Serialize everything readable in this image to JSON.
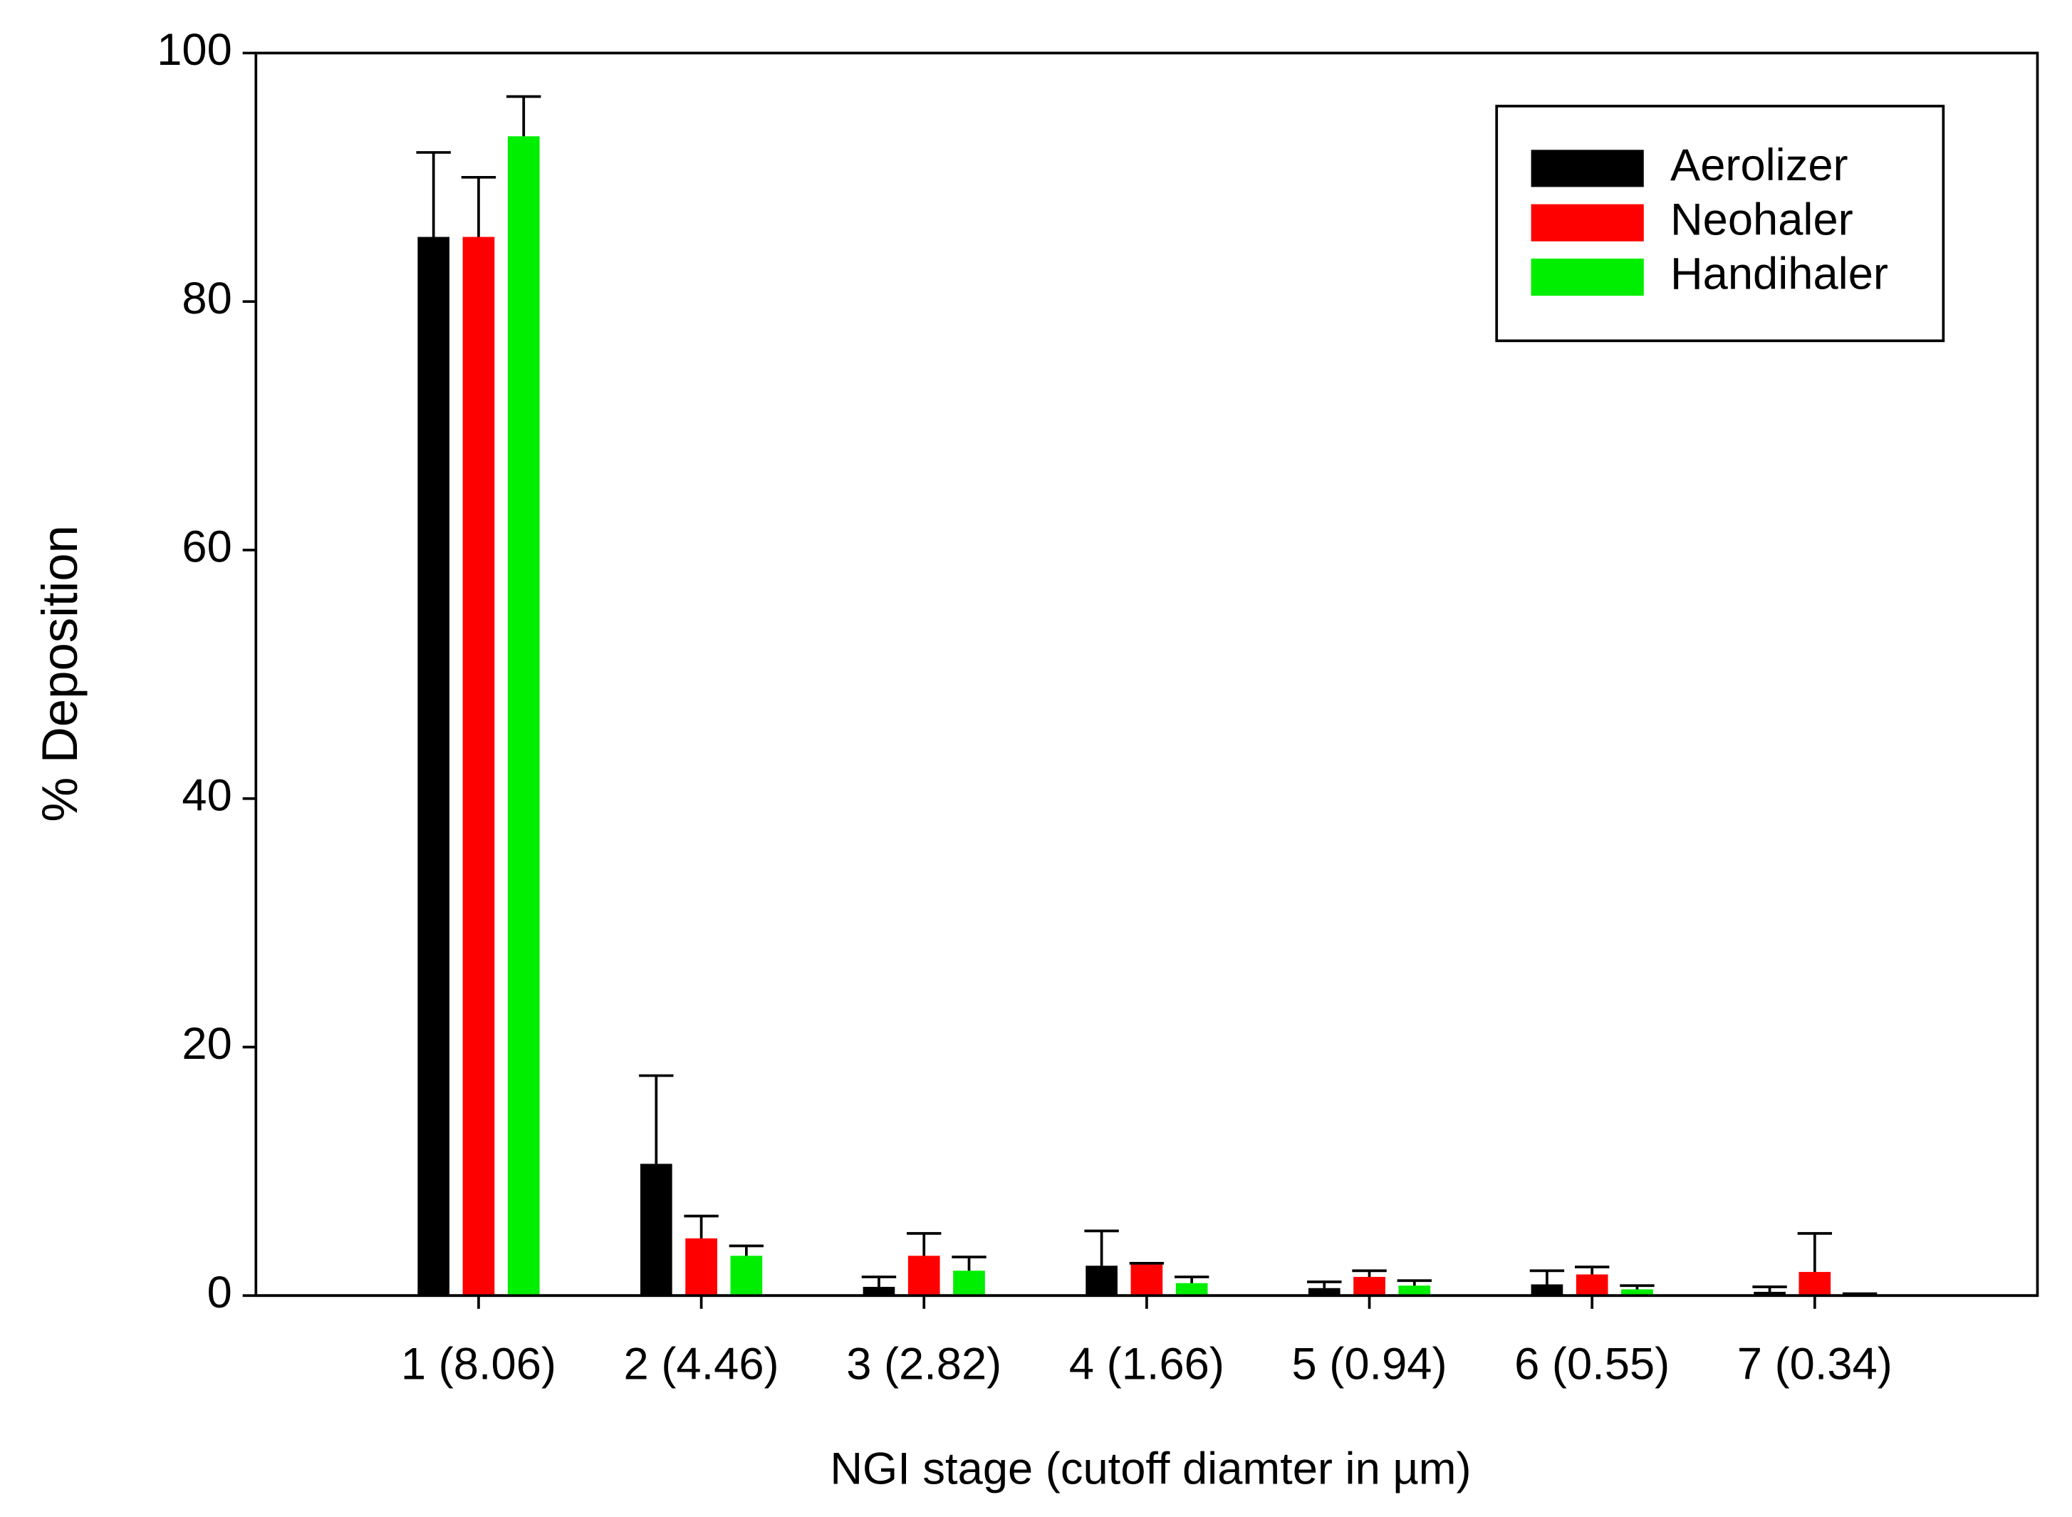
{
  "chart_data": {
    "type": "bar",
    "xlabel": "NGI stage (cutoff diamter in µm)",
    "ylabel": "% Deposition",
    "categories": [
      "1 (8.06)",
      "2 (4.46)",
      "3 (2.82)",
      "4 (1.66)",
      "5 (0.94)",
      "6 (0.55)",
      "7 (0.34)"
    ],
    "series": [
      {
        "name": "Aerolizer",
        "color": "#000000",
        "values": [
          85.2,
          10.6,
          0.7,
          2.4,
          0.6,
          0.9,
          0.3
        ],
        "errors": [
          6.8,
          7.1,
          0.8,
          2.8,
          0.5,
          1.1,
          0.4
        ]
      },
      {
        "name": "Neohaler",
        "color": "#ff0000",
        "values": [
          85.2,
          4.6,
          3.2,
          2.5,
          1.5,
          1.7,
          1.9
        ],
        "errors": [
          4.8,
          1.8,
          1.8,
          0.1,
          0.5,
          0.6,
          3.1
        ]
      },
      {
        "name": "Handihaler",
        "color": "#00ee00",
        "values": [
          93.3,
          3.2,
          2.0,
          1.0,
          0.8,
          0.5,
          0.1
        ],
        "errors": [
          3.2,
          0.8,
          1.1,
          0.5,
          0.4,
          0.3,
          0.05
        ]
      }
    ],
    "ylim": [
      0,
      100
    ],
    "yticks": [
      0,
      20,
      40,
      60,
      80,
      100
    ],
    "grid": false,
    "legend": "upper right"
  }
}
